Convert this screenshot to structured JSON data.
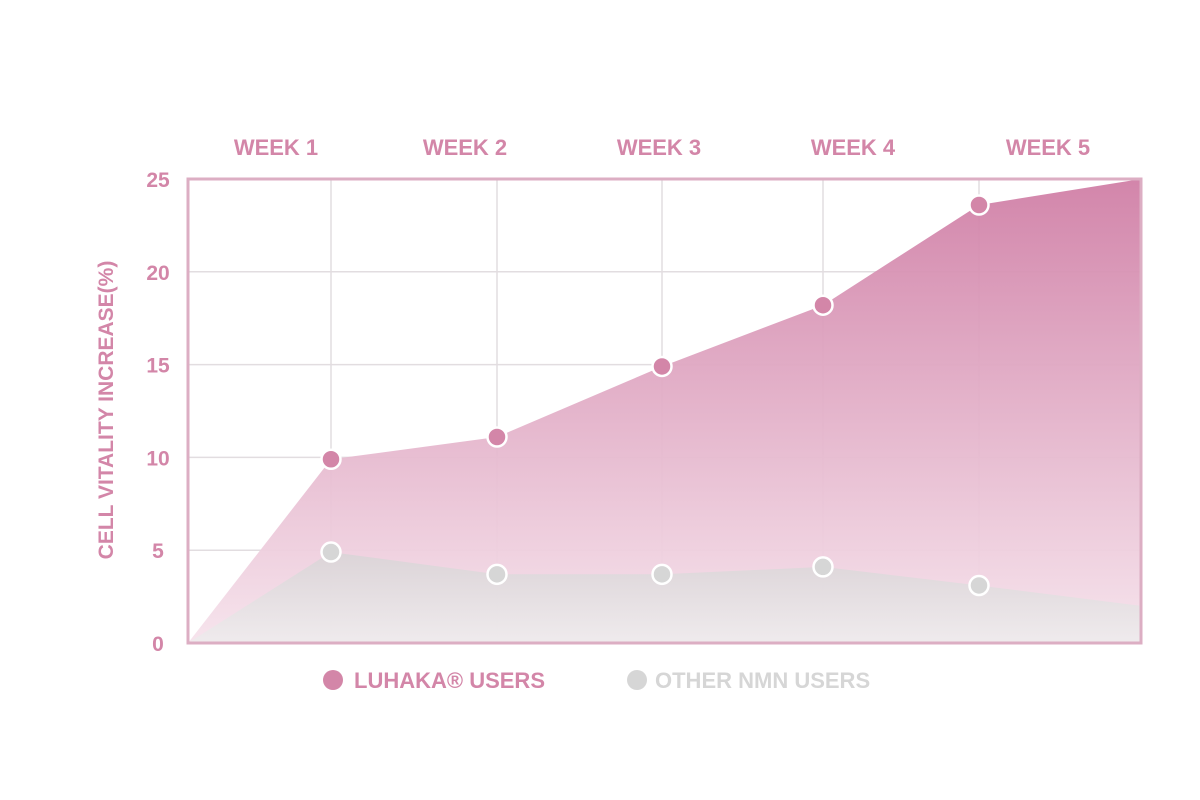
{
  "colors": {
    "primary": "#d386a8",
    "primary_dark": "#c978a0",
    "secondary": "#d6d6d6",
    "grid": "#e2dde0",
    "frame": "#dcaec3"
  },
  "chart_data": {
    "type": "area",
    "categories": [
      "WEEK 1",
      "WEEK 2",
      "WEEK 3",
      "WEEK 4",
      "WEEK 5"
    ],
    "ylabel": "CELL VITALITY INCREASE(%)",
    "ylim": [
      0,
      25
    ],
    "yticks": [
      "0",
      "5",
      "10",
      "15",
      "20",
      "25"
    ],
    "grid": true,
    "legend_position": "bottom",
    "series": [
      {
        "name": "LUHAKA®  USERS",
        "color": "#d386a8",
        "start": 0,
        "values": [
          9.9,
          11.1,
          14.9,
          18.2,
          23.6
        ],
        "end": 25
      },
      {
        "name": "OTHER NMN USERS",
        "color": "#d6d6d6",
        "start": 0,
        "values": [
          4.9,
          3.7,
          3.7,
          4.1,
          3.1
        ],
        "end": 2
      }
    ]
  }
}
